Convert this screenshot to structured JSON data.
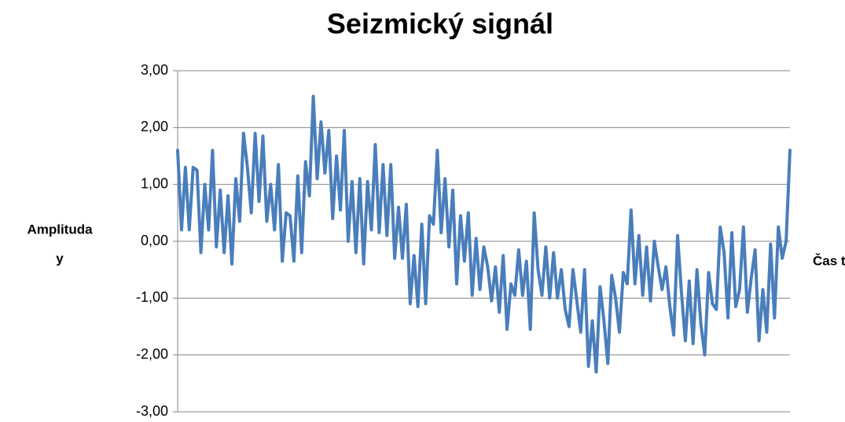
{
  "chart_data": {
    "type": "line",
    "title": "Seizmický signál",
    "ylabel": [
      "Amplituda",
      "y"
    ],
    "xlabel": "Čas t",
    "ylim": [
      -3,
      3
    ],
    "yticks": [
      {
        "value": -3,
        "label": "-3,00"
      },
      {
        "value": -2,
        "label": "-2,00"
      },
      {
        "value": -1,
        "label": "-1,00"
      },
      {
        "value": 0,
        "label": "0,00"
      },
      {
        "value": 1,
        "label": "1,00"
      },
      {
        "value": 2,
        "label": "2,00"
      },
      {
        "value": 3,
        "label": "3,00"
      }
    ],
    "grid": true,
    "series": [
      {
        "name": "Seizmický signál",
        "color": "#4a7ebb",
        "values": [
          1.6,
          0.2,
          1.3,
          0.2,
          1.3,
          1.25,
          -0.2,
          1.0,
          0.2,
          1.6,
          -0.1,
          0.9,
          -0.2,
          0.8,
          -0.4,
          1.1,
          0.35,
          1.9,
          1.3,
          0.5,
          1.9,
          0.7,
          1.85,
          0.35,
          1.0,
          0.2,
          1.35,
          -0.35,
          0.5,
          0.45,
          -0.35,
          1.15,
          -0.2,
          1.4,
          0.8,
          2.55,
          1.1,
          2.1,
          1.2,
          1.95,
          0.4,
          1.5,
          0.55,
          1.95,
          0.0,
          1.05,
          -0.2,
          1.1,
          -0.4,
          1.05,
          0.2,
          1.7,
          0.15,
          1.35,
          0.1,
          1.35,
          -0.3,
          0.6,
          -0.3,
          0.65,
          -1.1,
          -0.25,
          -1.15,
          0.3,
          -1.1,
          0.45,
          0.3,
          1.6,
          0.15,
          1.1,
          -0.1,
          0.9,
          -0.75,
          0.45,
          -0.35,
          0.5,
          -0.95,
          0.05,
          -0.85,
          -0.1,
          -0.45,
          -1.05,
          -0.45,
          -1.25,
          -0.25,
          -1.55,
          -0.75,
          -0.95,
          -0.15,
          -0.95,
          -0.35,
          -1.55,
          0.5,
          -0.5,
          -0.95,
          -0.1,
          -1.0,
          -0.2,
          -1.0,
          -0.5,
          -1.2,
          -1.5,
          -0.5,
          -1.05,
          -1.6,
          -0.5,
          -2.2,
          -1.4,
          -2.3,
          -0.8,
          -1.4,
          -2.15,
          -0.6,
          -1.0,
          -1.6,
          -0.55,
          -0.75,
          0.55,
          -0.75,
          0.1,
          -0.95,
          -0.1,
          -1.05,
          0.0,
          -0.45,
          -0.85,
          -0.45,
          -1.15,
          -1.65,
          0.1,
          -0.9,
          -1.75,
          -0.7,
          -1.8,
          -0.5,
          -1.45,
          -2.0,
          -0.55,
          -1.1,
          -1.2,
          0.25,
          -0.2,
          -1.35,
          0.15,
          -1.15,
          -0.85,
          0.25,
          -1.25,
          -0.65,
          -0.15,
          -1.75,
          -0.85,
          -1.6,
          -0.05,
          -1.35,
          0.25,
          -0.3,
          0.0,
          1.6
        ]
      }
    ]
  }
}
